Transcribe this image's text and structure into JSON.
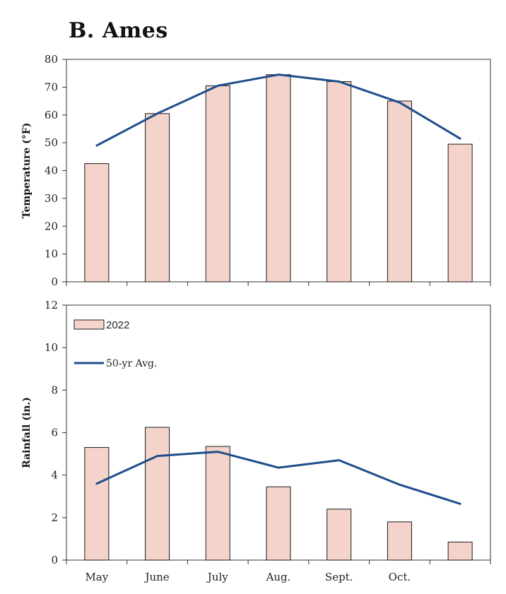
{
  "title": "B. Ames",
  "colors": {
    "bar_fill": "#f4d3cb",
    "bar_stroke": "#1a1a1a",
    "line": "#1f4e8c"
  },
  "legend": {
    "bar_label": "2022",
    "line_label": "50-yr Avg."
  },
  "chart_data": [
    {
      "type": "bar",
      "panel": "temperature",
      "categories": [
        "May",
        "June",
        "July",
        "Aug.",
        "Sept.",
        "Oct.",
        ""
      ],
      "ylabel": "Temperature (°F)",
      "ylim": [
        0,
        80
      ],
      "yticks": [
        0,
        10,
        20,
        30,
        40,
        50,
        60,
        70,
        80
      ],
      "series": [
        {
          "name": "2022",
          "type": "bar",
          "values": [
            42.5,
            60.5,
            70.5,
            74.5,
            72,
            65,
            49.5
          ]
        },
        {
          "name": "50-yr Avg.",
          "type": "line",
          "values": [
            49,
            60.5,
            70.5,
            74.5,
            72,
            64.5,
            51.5
          ]
        }
      ]
    },
    {
      "type": "bar",
      "panel": "rainfall",
      "categories": [
        "May",
        "June",
        "July",
        "Aug.",
        "Sept.",
        "Oct.",
        ""
      ],
      "ylabel": "Rainfall (in.)",
      "ylim": [
        0,
        12
      ],
      "yticks": [
        0,
        2,
        4,
        6,
        8,
        10,
        12
      ],
      "legend": "top-left",
      "series": [
        {
          "name": "2022",
          "type": "bar",
          "values": [
            5.3,
            6.25,
            5.35,
            3.45,
            2.4,
            1.8,
            0.85
          ]
        },
        {
          "name": "50-yr Avg.",
          "type": "line",
          "values": [
            3.6,
            4.9,
            5.1,
            4.35,
            4.7,
            3.55,
            2.65
          ]
        }
      ]
    }
  ]
}
